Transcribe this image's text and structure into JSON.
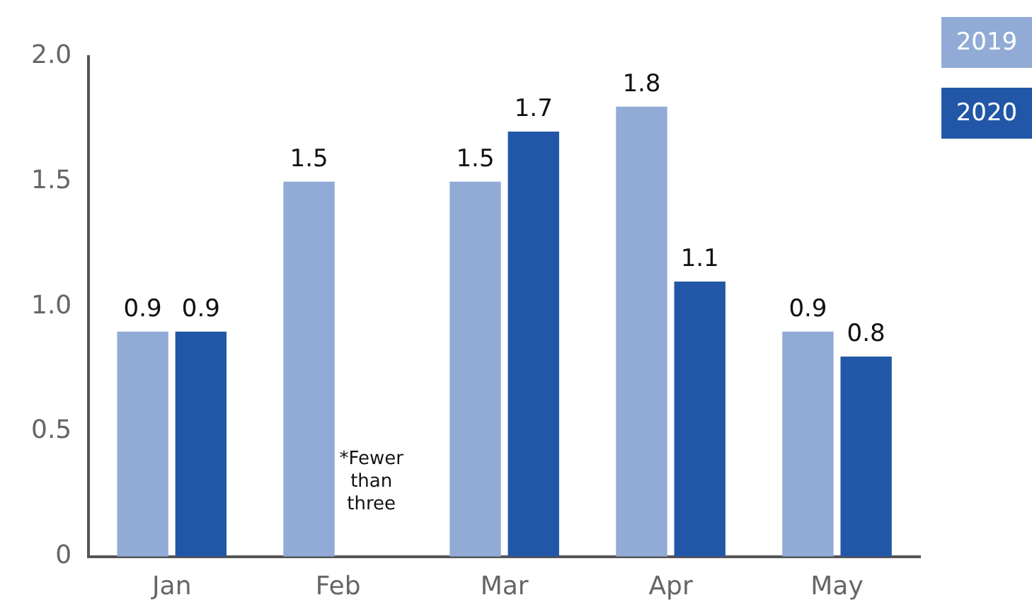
{
  "chart_data": {
    "type": "bar",
    "categories": [
      "Jan",
      "Feb",
      "Mar",
      "Apr",
      "May"
    ],
    "series": [
      {
        "name": "2019",
        "color": "#91abd6",
        "values": [
          0.9,
          1.5,
          1.5,
          1.8,
          0.9
        ]
      },
      {
        "name": "2020",
        "color": "#2257a8",
        "values": [
          0.9,
          null,
          1.7,
          1.1,
          0.8
        ]
      }
    ],
    "ylim": [
      0,
      2.0
    ],
    "yticks": [
      {
        "value": 0,
        "label": "0"
      },
      {
        "value": 0.5,
        "label": "0.5"
      },
      {
        "value": 1,
        "label": "1.0"
      },
      {
        "value": 1.5,
        "label": "1.5"
      },
      {
        "value": 2,
        "label": "2.0"
      }
    ],
    "data_labels": true,
    "grid": false,
    "legend": "top right",
    "annotations": [
      {
        "text": "*Fewer than three",
        "x": "Feb",
        "y": 0.3
      }
    ]
  }
}
